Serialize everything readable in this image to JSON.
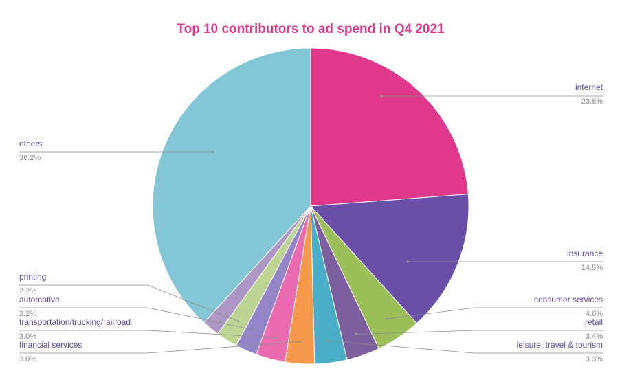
{
  "chart_data": {
    "type": "pie",
    "title": "Top 10 contributors to ad spend in Q4 2021",
    "title_color": "#e0388b",
    "start": "12 o'clock",
    "direction": "clockwise",
    "slices": [
      {
        "label": "internet",
        "value": 23.8,
        "pct_label": "23.8%",
        "color": "#e0388b"
      },
      {
        "label": "insurance",
        "value": 14.5,
        "pct_label": "14.5%",
        "color": "#6a4fa8"
      },
      {
        "label": "consumer services",
        "value": 4.6,
        "pct_label": "4.6%",
        "color": "#9cbf5a"
      },
      {
        "label": "retail",
        "value": 3.4,
        "pct_label": "3.4%",
        "color": "#7d5fa0"
      },
      {
        "label": "leisure, travel & tourism",
        "value": 3.3,
        "pct_label": "3.3%",
        "color": "#4baec9"
      },
      {
        "label": "financial services",
        "value": 3.0,
        "pct_label": "3.0%",
        "color": "#f7994a"
      },
      {
        "label": "transportation/trucking/railroad",
        "value": 3.0,
        "pct_label": "3.0%",
        "color": "#ea6bb0"
      },
      {
        "label": "automotive",
        "value": 2.2,
        "pct_label": "2.2%",
        "color": "#9385c8"
      },
      {
        "label": "printing",
        "value": 2.2,
        "pct_label": "2.2%",
        "color": "#bed493"
      },
      {
        "label": "others",
        "value": 38.2,
        "pct_label": "38.2%",
        "color": "#83c6d6"
      }
    ],
    "extra_slice": {
      "value": 1.8,
      "color": "#ad97c5"
    }
  }
}
